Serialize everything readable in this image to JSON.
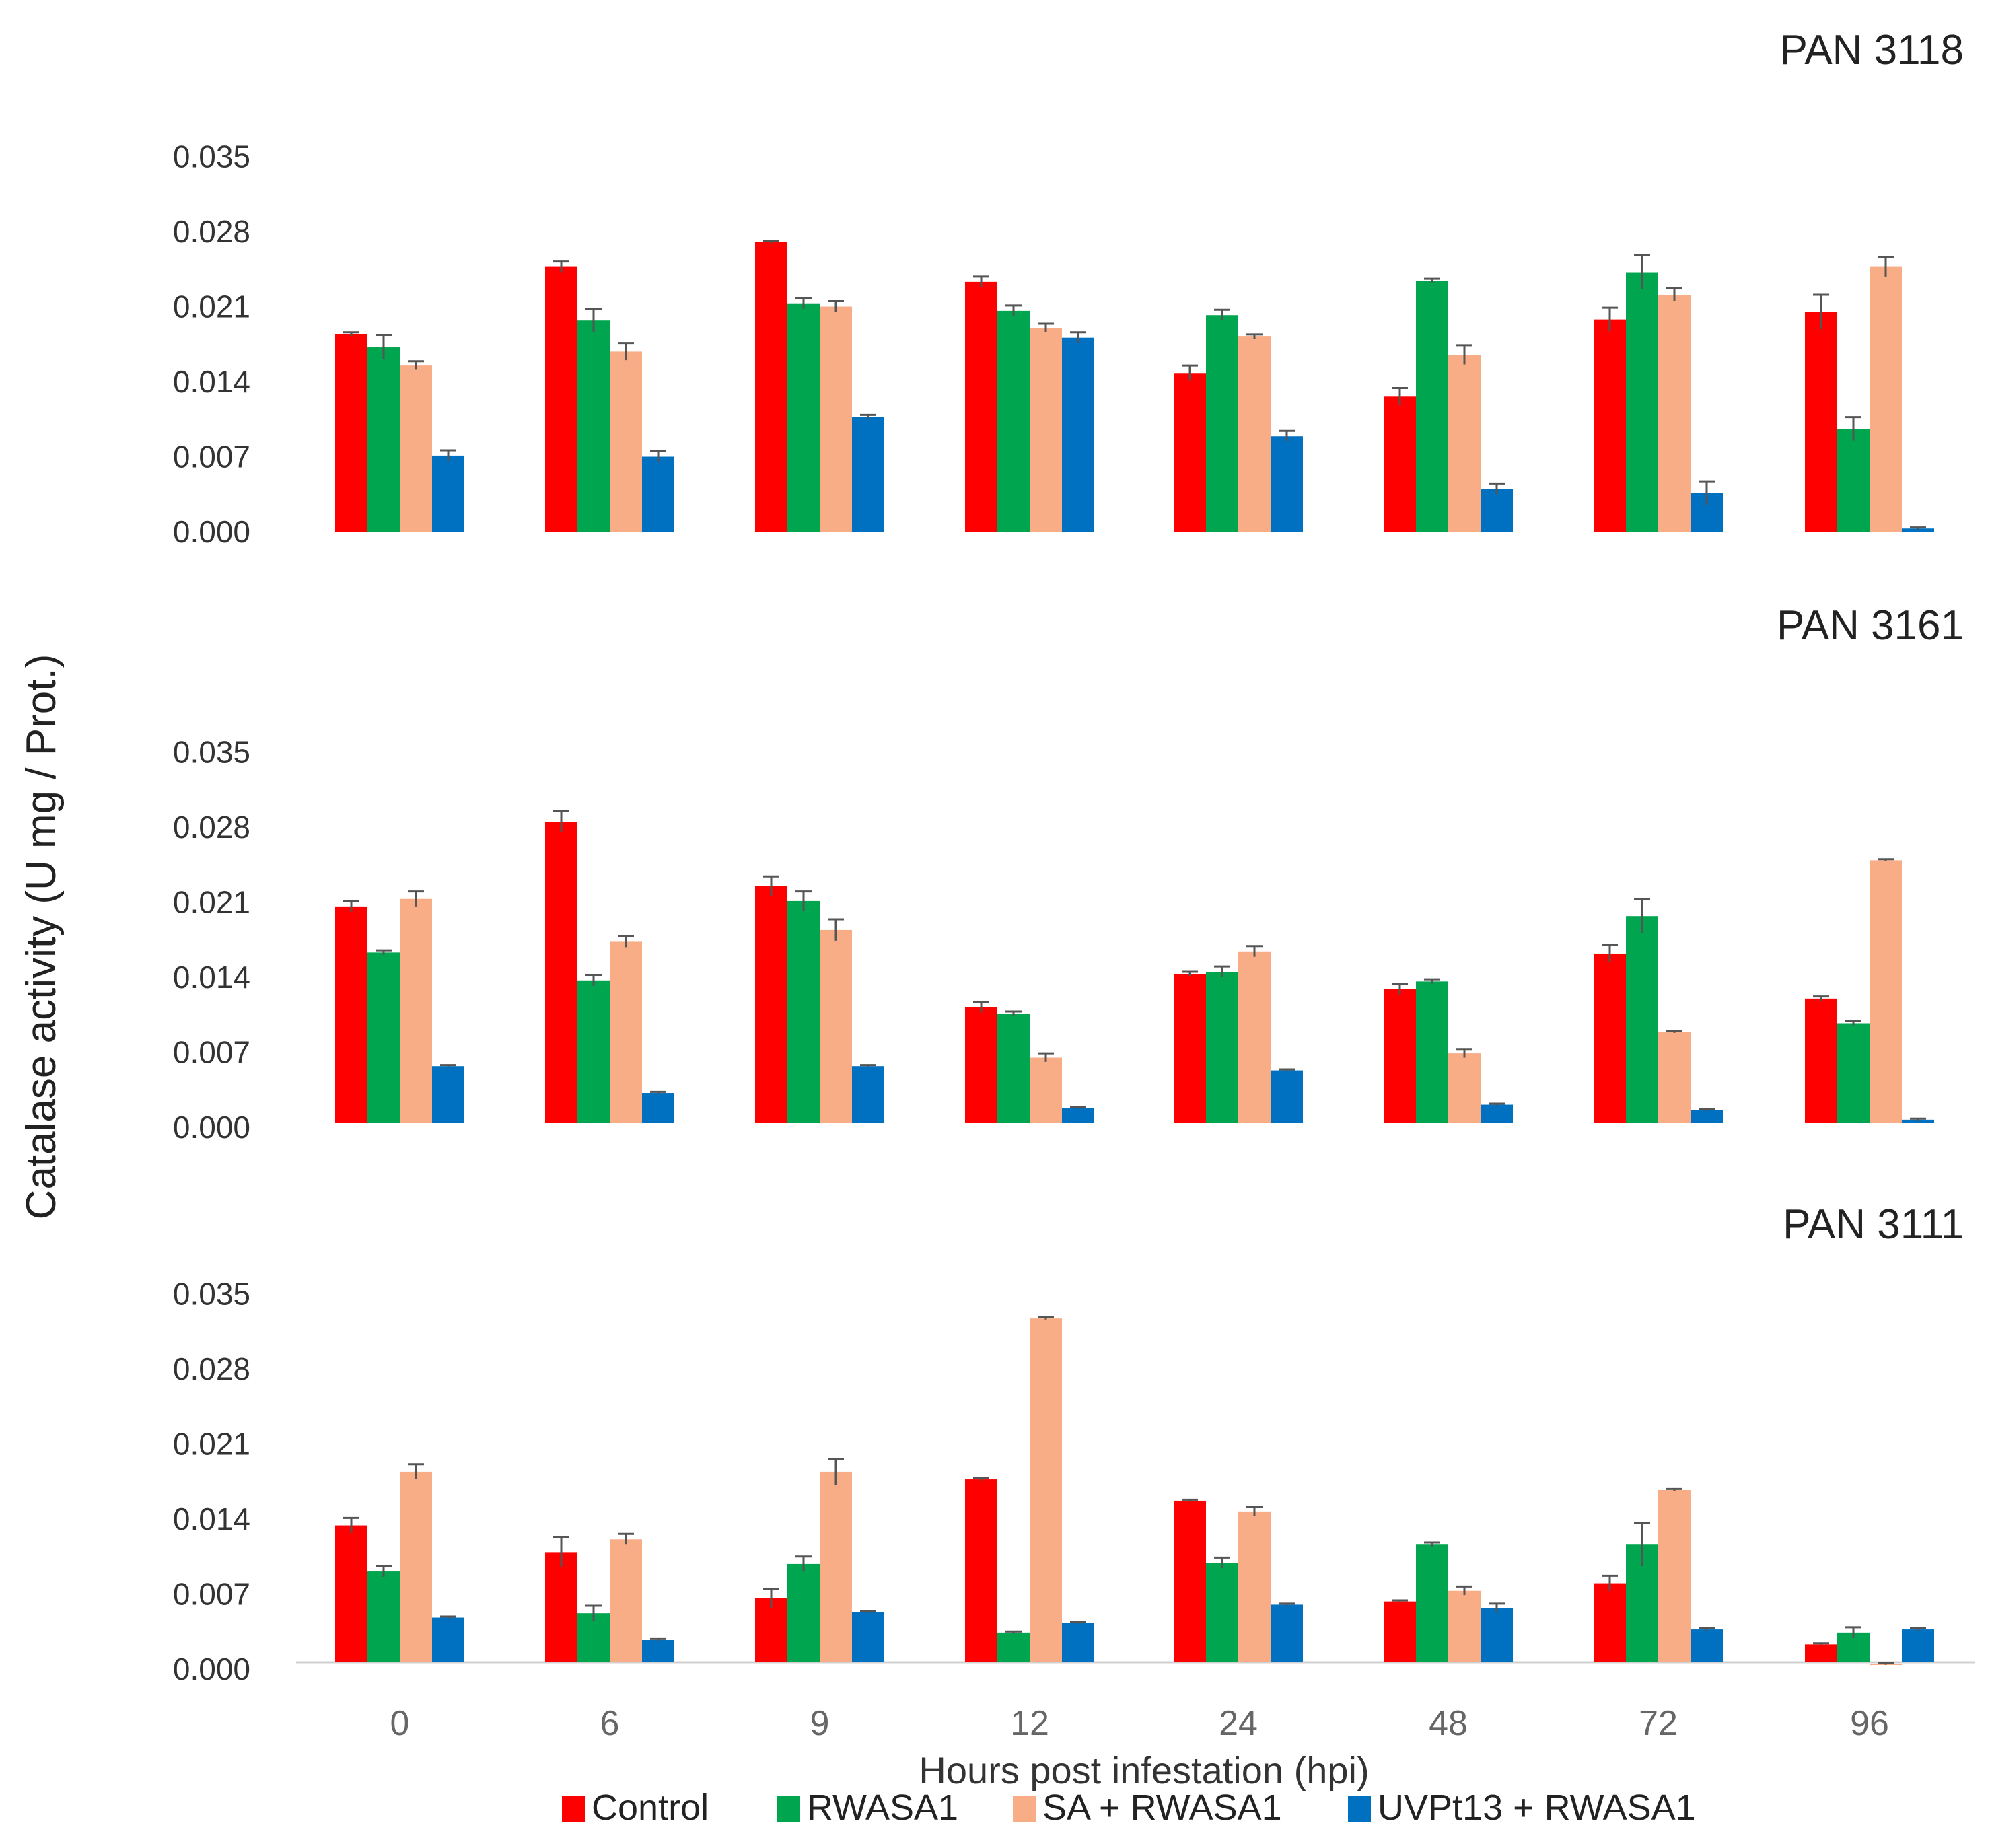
{
  "y_axis_label": "Catalase activity (U mg / Prot.)",
  "x_axis_label": "Hours post infestation (hpi)",
  "legend": [
    {
      "label": "Control",
      "color": "#ff0000"
    },
    {
      "label": "RWASA1",
      "color": "#00a550"
    },
    {
      "label": "SA + RWASA1",
      "color": "#f8ad87"
    },
    {
      "label": "UVPt13 + RWASA1",
      "color": "#0070c0"
    }
  ],
  "chart_data": [
    {
      "type": "bar",
      "title": "PAN 3118",
      "xlabel": "",
      "ylabel": "Catalase activity (U mg / Prot.)",
      "categories": [
        "0",
        "6",
        "9",
        "12",
        "24",
        "48",
        "72",
        "96"
      ],
      "ylim": [
        0,
        0.035
      ],
      "yticks": [
        "0.000",
        "0.007",
        "0.014",
        "0.021",
        "0.028",
        "0.035"
      ],
      "series": [
        {
          "name": "Control",
          "values": [
            0.0184,
            0.0247,
            0.027,
            0.0233,
            0.0148,
            0.0126,
            0.0198,
            0.0205
          ],
          "errors": [
            0.0002,
            0.0005,
            0.0001,
            0.0005,
            0.0007,
            0.0008,
            0.0011,
            0.0016
          ]
        },
        {
          "name": "RWASA1",
          "values": [
            0.0172,
            0.0197,
            0.0213,
            0.0206,
            0.0202,
            0.0234,
            0.0242,
            0.0096
          ],
          "errors": [
            0.0011,
            0.0011,
            0.0005,
            0.0005,
            0.0005,
            0.0002,
            0.0016,
            0.0011
          ]
        },
        {
          "name": "SA + RWASA1",
          "values": [
            0.0155,
            0.0168,
            0.021,
            0.019,
            0.0182,
            0.0165,
            0.0221,
            0.0247
          ],
          "errors": [
            0.0004,
            0.0008,
            0.0005,
            0.0004,
            0.0002,
            0.0009,
            0.0006,
            0.0009
          ]
        },
        {
          "name": "UVPt13 + RWASA1",
          "values": [
            0.0071,
            0.007,
            0.0107,
            0.0181,
            0.0089,
            0.004,
            0.0036,
            0.0003
          ],
          "errors": [
            0.0005,
            0.0005,
            0.0002,
            0.0005,
            0.0005,
            0.0005,
            0.0011,
            0.0001
          ]
        }
      ]
    },
    {
      "type": "bar",
      "title": "PAN 3161",
      "xlabel": "",
      "ylabel": "Catalase activity (U mg / Prot.)",
      "categories": [
        "0",
        "6",
        "9",
        "12",
        "24",
        "48",
        "72",
        "96"
      ],
      "ylim": [
        0,
        0.035
      ],
      "yticks": [
        "0.000",
        "0.007",
        "0.014",
        "0.021",
        "0.028",
        "0.035"
      ],
      "series": [
        {
          "name": "Control",
          "values": [
            0.0206,
            0.0285,
            0.0225,
            0.0112,
            0.0143,
            0.0129,
            0.0162,
            0.012
          ],
          "errors": [
            0.0005,
            0.001,
            0.0009,
            0.0005,
            0.0002,
            0.0005,
            0.0008,
            0.0002
          ]
        },
        {
          "name": "RWASA1",
          "values": [
            0.0163,
            0.0137,
            0.0211,
            0.0106,
            0.0145,
            0.0136,
            0.0197,
            0.0097
          ],
          "errors": [
            0.0002,
            0.0005,
            0.0009,
            0.0002,
            0.0005,
            0.0002,
            0.0016,
            0.0002
          ]
        },
        {
          "name": "SA + RWASA1",
          "values": [
            0.0213,
            0.0173,
            0.0184,
            0.0065,
            0.0164,
            0.0069,
            0.0089,
            0.0249
          ],
          "errors": [
            0.0007,
            0.0005,
            0.001,
            0.0004,
            0.0005,
            0.0004,
            0.0001,
            0.0001
          ]
        },
        {
          "name": "UVPt13 + RWASA1",
          "values": [
            0.0057,
            0.0032,
            0.0057,
            0.0018,
            0.0053,
            0.0021,
            0.0016,
            0.0007
          ],
          "errors": [
            0.0001,
            0.0001,
            0.0001,
            0.0001,
            0.0001,
            0.0001,
            0.0001,
            0.0001
          ]
        }
      ]
    },
    {
      "type": "bar",
      "title": "PAN 3111",
      "xlabel": "Hours post infestation (hpi)",
      "ylabel": "Catalase activity (U mg / Prot.)",
      "categories": [
        "0",
        "6",
        "9",
        "12",
        "24",
        "48",
        "72",
        "96"
      ],
      "ylim": [
        0,
        0.035
      ],
      "yticks": [
        "0.000",
        "0.007",
        "0.014",
        "0.021",
        "0.028",
        "0.035"
      ],
      "series": [
        {
          "name": "Control",
          "values": [
            0.0134,
            0.0109,
            0.0066,
            0.0177,
            0.0157,
            0.0063,
            0.008,
            0.0023
          ],
          "errors": [
            0.0007,
            0.0014,
            0.0009,
            0.0001,
            0.0001,
            0.0001,
            0.0007,
            0.0001
          ]
        },
        {
          "name": "RWASA1",
          "values": [
            0.0091,
            0.0052,
            0.0098,
            0.0034,
            0.0099,
            0.0116,
            0.0116,
            0.0034
          ],
          "errors": [
            0.0005,
            0.0007,
            0.0007,
            0.0001,
            0.0005,
            0.0002,
            0.002,
            0.0005
          ]
        },
        {
          "name": "SA + RWASA1",
          "values": [
            0.0184,
            0.0121,
            0.0184,
            0.0327,
            0.0147,
            0.0073,
            0.0167,
            0.0005
          ],
          "errors": [
            0.0007,
            0.0005,
            0.0012,
            0.0001,
            0.0004,
            0.0004,
            0.0001,
            0.0001
          ]
        },
        {
          "name": "UVPt13 + RWASA1",
          "values": [
            0.0048,
            0.0027,
            0.0053,
            0.0043,
            0.006,
            0.0057,
            0.0037,
            0.0037
          ],
          "errors": [
            0.0001,
            0.0001,
            0.0001,
            0.0001,
            0.0001,
            0.0004,
            0.0001,
            0.0001
          ]
        }
      ]
    }
  ]
}
